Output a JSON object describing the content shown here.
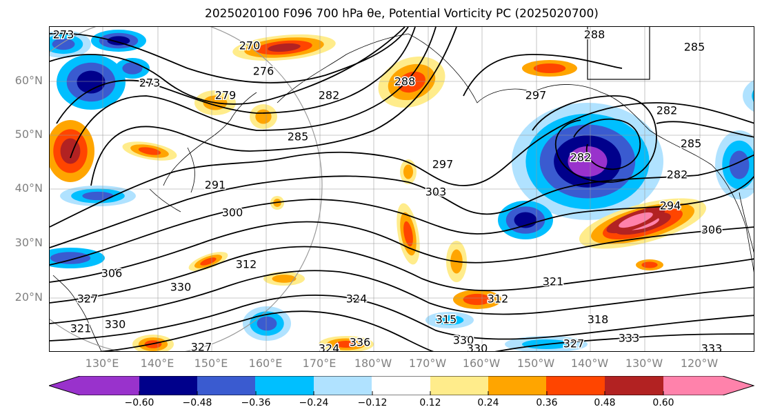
{
  "title": "2025020100 F096 700 hPa θe, Potential Vorticity PC (2025020700)",
  "colors": {
    "pv_bins": [
      "#9932cc",
      "#00008b",
      "#3a5bd0",
      "#00bfff",
      "#b0e2ff",
      "#ffffff",
      "#ffec8b",
      "#ffa500",
      "#ff4500",
      "#b22222",
      "#ff82ab"
    ],
    "grid": "#999999",
    "contour": "#000000",
    "coast": "#000000",
    "axis_label": "#808080"
  },
  "lat_labels": [
    "60°N",
    "50°N",
    "40°N",
    "30°N",
    "20°N"
  ],
  "lon_labels": [
    "130°E",
    "140°E",
    "150°E",
    "160°E",
    "170°E",
    "180°W",
    "170°W",
    "160°W",
    "150°W",
    "140°W",
    "130°W",
    "120°W"
  ],
  "colorbar": {
    "ticks": [
      "−0.60",
      "−0.48",
      "−0.36",
      "−0.24",
      "−0.12",
      "0.12",
      "0.24",
      "0.36",
      "0.48",
      "0.60"
    ]
  },
  "contour_labels": [
    "273",
    "270",
    "276",
    "288",
    "273",
    "279",
    "282",
    "285",
    "291",
    "300",
    "297",
    "303",
    "297",
    "282",
    "282",
    "288",
    "285",
    "285",
    "282",
    "294",
    "306",
    "312",
    "306",
    "330",
    "327",
    "324",
    "321",
    "312",
    "315",
    "318",
    "321",
    "330",
    "336",
    "324",
    "330",
    "327",
    "333",
    "330",
    "333",
    "327"
  ]
}
